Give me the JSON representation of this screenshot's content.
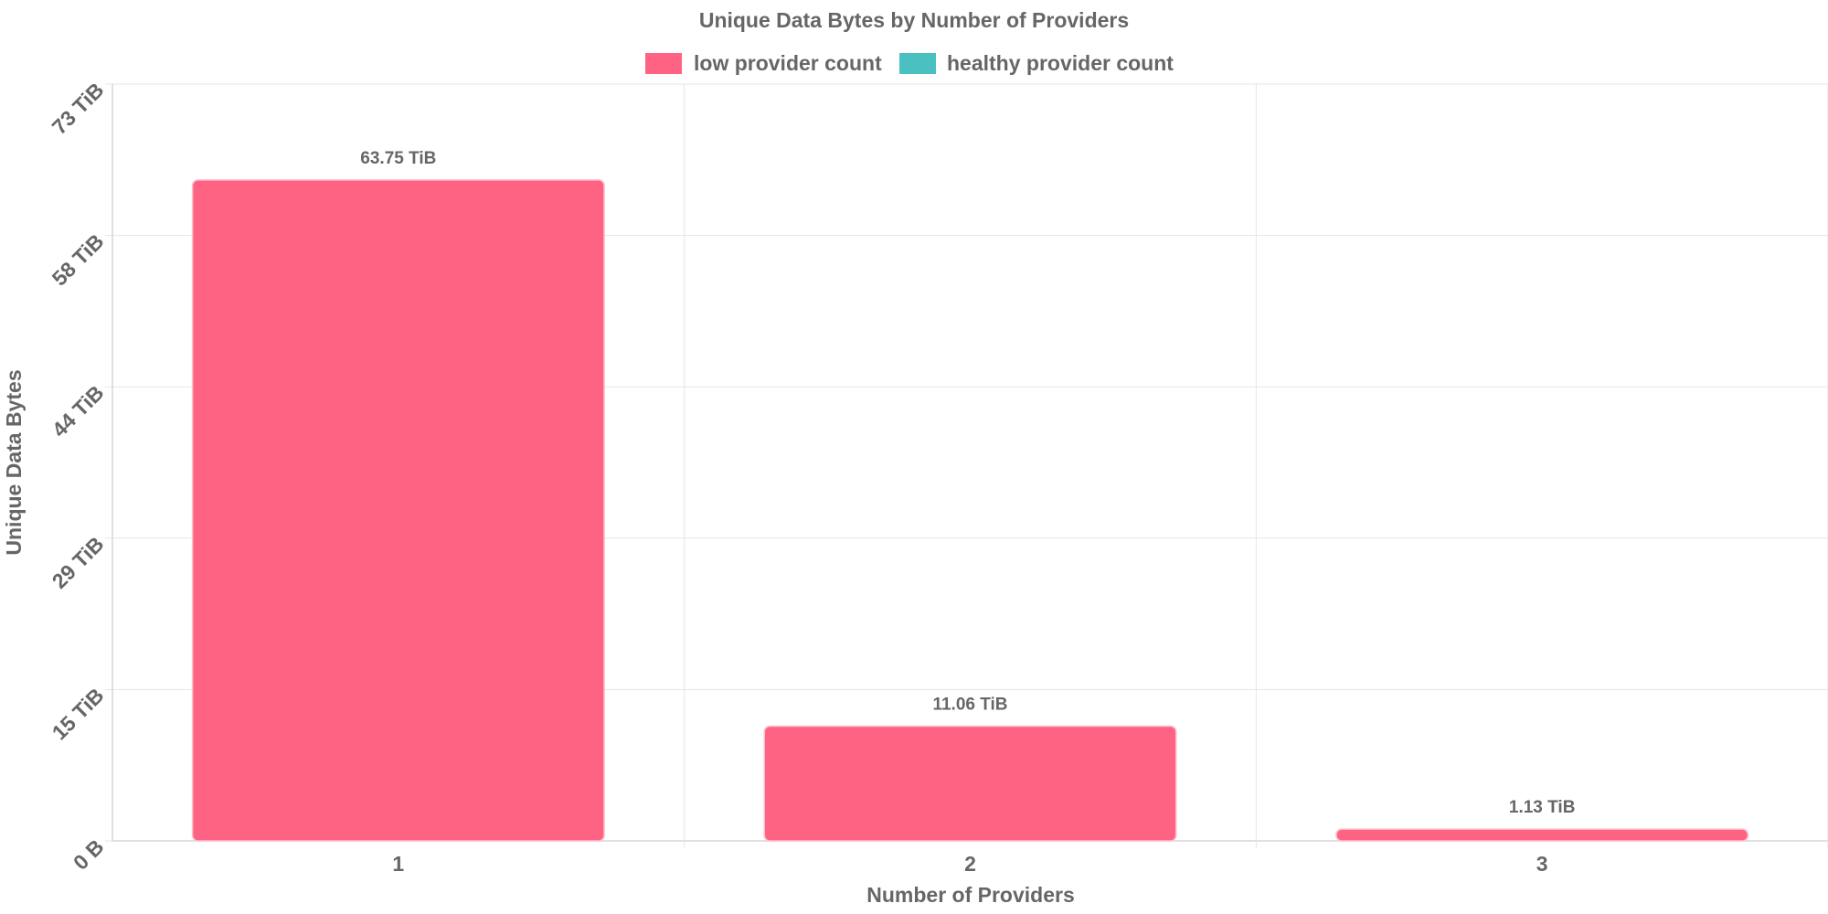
{
  "chart_data": {
    "type": "bar",
    "title": "Unique Data Bytes by Number of Providers",
    "xlabel": "Number of Providers",
    "ylabel": "Unique Data Bytes",
    "categories": [
      "1",
      "2",
      "3"
    ],
    "series": [
      {
        "name": "low provider count",
        "color": "#ff6384",
        "values": [
          63.75,
          11.06,
          1.13
        ],
        "value_labels": [
          "63.75 TiB",
          "11.06 TiB",
          "1.13 TiB"
        ]
      },
      {
        "name": "healthy provider count",
        "color": "#4bc0c0",
        "values": [
          0,
          0,
          0
        ],
        "value_labels": []
      }
    ],
    "ylim": [
      0,
      73
    ],
    "y_ticks": [
      0,
      14.6,
      29.2,
      43.8,
      58.4,
      73
    ],
    "y_tick_labels": [
      "0 B",
      "15 TiB",
      "29 TiB",
      "44 TiB",
      "58 TiB",
      "73 TiB"
    ],
    "y_unit": "TiB",
    "grid": true,
    "legend_position": "top"
  }
}
